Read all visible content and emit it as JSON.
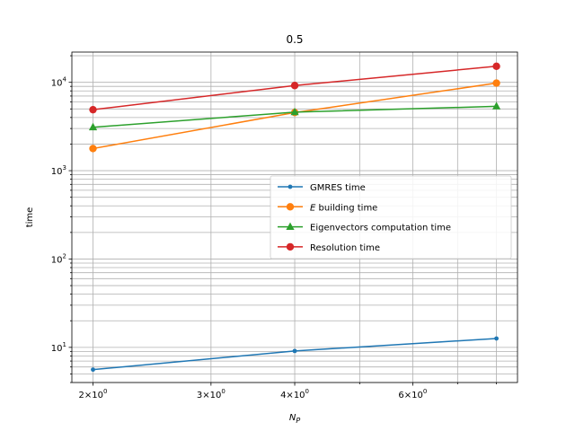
{
  "chart_data": {
    "type": "line",
    "title": "0.5",
    "xlabel": "N_P",
    "ylabel": "time",
    "xscale": "log",
    "yscale": "log",
    "xlim": [
      1.86,
      8.6
    ],
    "ylim": [
      4.0,
      22000
    ],
    "grid": "major and minor",
    "legend_position": "center-right",
    "x_major_ticks": [
      2,
      3,
      4,
      6
    ],
    "x_tick_labels": [
      {
        "base": "2",
        "exp": "0"
      },
      {
        "base": "3",
        "exp": "0"
      },
      {
        "base": "4",
        "exp": "0"
      },
      {
        "base": "6",
        "exp": "0"
      }
    ],
    "y_major_ticks": [
      10,
      100,
      1000,
      10000
    ],
    "y_tick_labels": [
      {
        "base": "10",
        "exp": "1"
      },
      {
        "base": "10",
        "exp": "2"
      },
      {
        "base": "10",
        "exp": "3"
      },
      {
        "base": "10",
        "exp": "4"
      }
    ],
    "x": [
      2,
      4,
      8
    ],
    "series": [
      {
        "name": "GMRES time",
        "color": "#1f77b4",
        "marker": "dot",
        "values": [
          5.6,
          9.1,
          12.6
        ]
      },
      {
        "name_prefix": "E",
        "name": " building time",
        "color": "#ff7f0e",
        "marker": "circle",
        "values": [
          1780,
          4550,
          9800
        ]
      },
      {
        "name": "Eigenvectors computation time",
        "color": "#2ca02c",
        "marker": "triangle",
        "values": [
          3100,
          4600,
          5350
        ]
      },
      {
        "name": "Resolution time",
        "color": "#d62728",
        "marker": "circle",
        "values": [
          4900,
          9200,
          15200
        ]
      }
    ]
  }
}
